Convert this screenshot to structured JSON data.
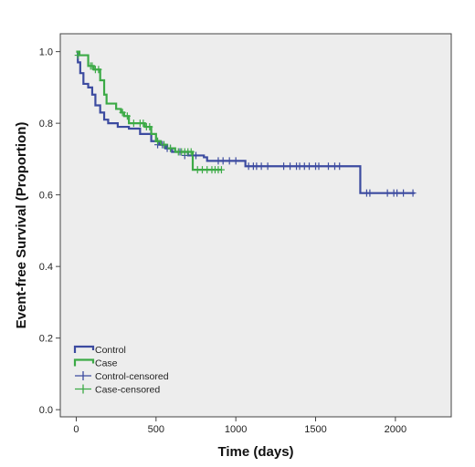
{
  "chart_data": {
    "type": "line",
    "subtype": "kaplan-meier-step",
    "xlabel": "Time (days)",
    "ylabel": "Event-free Survival (Proportion)",
    "xlim": [
      -100,
      2350
    ],
    "ylim": [
      -0.02,
      1.05
    ],
    "xticks": [
      0,
      500,
      1000,
      1500,
      2000
    ],
    "yticks": [
      0.0,
      0.2,
      0.4,
      0.6,
      0.8,
      1.0
    ],
    "ytick_labels": [
      "0.0",
      "0.2",
      "0.4",
      "0.6",
      "0.8",
      "1.0"
    ],
    "grid": false,
    "legend_position": "bottom-left",
    "legend": [
      "Control",
      "Case",
      "Control-censored",
      "Case-censored"
    ],
    "series": [
      {
        "name": "Control",
        "color": "#3C4BA0",
        "steps": [
          [
            0,
            1.0
          ],
          [
            10,
            0.97
          ],
          [
            25,
            0.94
          ],
          [
            45,
            0.91
          ],
          [
            75,
            0.9
          ],
          [
            100,
            0.88
          ],
          [
            120,
            0.85
          ],
          [
            150,
            0.83
          ],
          [
            175,
            0.81
          ],
          [
            200,
            0.8
          ],
          [
            260,
            0.79
          ],
          [
            330,
            0.785
          ],
          [
            400,
            0.77
          ],
          [
            470,
            0.75
          ],
          [
            520,
            0.74
          ],
          [
            560,
            0.73
          ],
          [
            600,
            0.72
          ],
          [
            700,
            0.71
          ],
          [
            800,
            0.705
          ],
          [
            820,
            0.695
          ],
          [
            1060,
            0.68
          ],
          [
            1780,
            0.605
          ],
          [
            2120,
            0.605
          ]
        ],
        "censored": [
          [
            510,
            0.74
          ],
          [
            540,
            0.74
          ],
          [
            570,
            0.73
          ],
          [
            590,
            0.73
          ],
          [
            650,
            0.72
          ],
          [
            680,
            0.71
          ],
          [
            750,
            0.71
          ],
          [
            890,
            0.695
          ],
          [
            920,
            0.695
          ],
          [
            960,
            0.695
          ],
          [
            1000,
            0.695
          ],
          [
            1080,
            0.68
          ],
          [
            1110,
            0.68
          ],
          [
            1130,
            0.68
          ],
          [
            1160,
            0.68
          ],
          [
            1200,
            0.68
          ],
          [
            1300,
            0.68
          ],
          [
            1340,
            0.68
          ],
          [
            1380,
            0.68
          ],
          [
            1400,
            0.68
          ],
          [
            1430,
            0.68
          ],
          [
            1460,
            0.68
          ],
          [
            1500,
            0.68
          ],
          [
            1520,
            0.68
          ],
          [
            1580,
            0.68
          ],
          [
            1620,
            0.68
          ],
          [
            1650,
            0.68
          ],
          [
            1820,
            0.605
          ],
          [
            1840,
            0.605
          ],
          [
            1950,
            0.605
          ],
          [
            1990,
            0.605
          ],
          [
            2010,
            0.605
          ],
          [
            2050,
            0.605
          ],
          [
            2110,
            0.605
          ]
        ]
      },
      {
        "name": "Case",
        "color": "#3CAA46",
        "steps": [
          [
            0,
            1.0
          ],
          [
            20,
            0.99
          ],
          [
            75,
            0.96
          ],
          [
            110,
            0.95
          ],
          [
            150,
            0.92
          ],
          [
            175,
            0.88
          ],
          [
            190,
            0.855
          ],
          [
            250,
            0.84
          ],
          [
            280,
            0.83
          ],
          [
            300,
            0.82
          ],
          [
            330,
            0.8
          ],
          [
            430,
            0.79
          ],
          [
            470,
            0.77
          ],
          [
            500,
            0.75
          ],
          [
            530,
            0.74
          ],
          [
            570,
            0.73
          ],
          [
            620,
            0.72
          ],
          [
            730,
            0.67
          ],
          [
            910,
            0.67
          ]
        ],
        "censored": [
          [
            10,
            0.99
          ],
          [
            90,
            0.96
          ],
          [
            100,
            0.96
          ],
          [
            120,
            0.95
          ],
          [
            140,
            0.95
          ],
          [
            290,
            0.83
          ],
          [
            320,
            0.82
          ],
          [
            360,
            0.8
          ],
          [
            400,
            0.8
          ],
          [
            420,
            0.8
          ],
          [
            440,
            0.79
          ],
          [
            460,
            0.79
          ],
          [
            510,
            0.75
          ],
          [
            550,
            0.74
          ],
          [
            590,
            0.73
          ],
          [
            640,
            0.72
          ],
          [
            660,
            0.72
          ],
          [
            680,
            0.72
          ],
          [
            700,
            0.72
          ],
          [
            720,
            0.72
          ],
          [
            760,
            0.67
          ],
          [
            790,
            0.67
          ],
          [
            820,
            0.67
          ],
          [
            850,
            0.67
          ],
          [
            870,
            0.67
          ],
          [
            890,
            0.67
          ],
          [
            910,
            0.67
          ]
        ]
      }
    ]
  }
}
